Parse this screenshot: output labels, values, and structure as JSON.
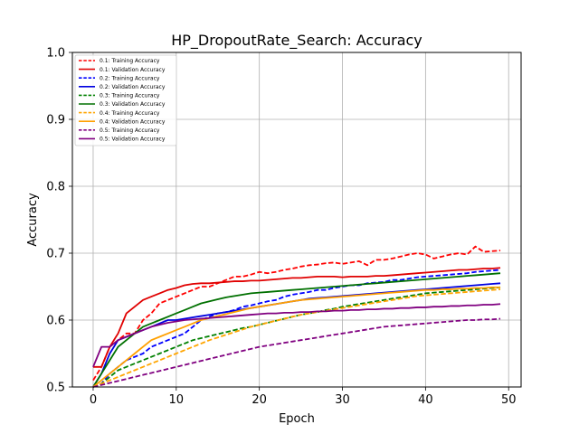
{
  "chart_data": {
    "type": "line",
    "title": "HP_DropoutRate_Search: Accuracy",
    "xlabel": "Epoch",
    "ylabel": "Accuracy",
    "xlim": [
      -2.5,
      51.5
    ],
    "ylim": [
      0.5,
      1.0
    ],
    "xticks": [
      0,
      10,
      20,
      30,
      40,
      50
    ],
    "yticks": [
      0.5,
      0.6,
      0.7,
      0.8,
      0.9,
      1.0
    ],
    "xtick_labels": [
      "0",
      "10",
      "20",
      "30",
      "40",
      "50"
    ],
    "ytick_labels": [
      "0.5",
      "0.6",
      "0.7",
      "0.8",
      "0.9",
      "1.0"
    ],
    "grid": true,
    "legend_position": "upper-left",
    "series": [
      {
        "name": "0.1: Training Accuracy",
        "color": "#ff0000",
        "dash": "dashed",
        "values": [
          0.51,
          0.53,
          0.56,
          0.57,
          0.58,
          0.58,
          0.6,
          0.61,
          0.625,
          0.63,
          0.635,
          0.64,
          0.645,
          0.65,
          0.65,
          0.655,
          0.66,
          0.665,
          0.665,
          0.668,
          0.672,
          0.67,
          0.672,
          0.675,
          0.677,
          0.68,
          0.682,
          0.683,
          0.685,
          0.686,
          0.684,
          0.686,
          0.688,
          0.682,
          0.69,
          0.69,
          0.692,
          0.695,
          0.698,
          0.7,
          0.698,
          0.692,
          0.695,
          0.698,
          0.7,
          0.698,
          0.71,
          0.702,
          0.703,
          0.704
        ]
      },
      {
        "name": "0.1: Validation Accuracy",
        "color": "#e00000",
        "dash": "solid",
        "values": [
          0.53,
          0.53,
          0.56,
          0.58,
          0.61,
          0.62,
          0.63,
          0.635,
          0.64,
          0.645,
          0.648,
          0.652,
          0.654,
          0.655,
          0.655,
          0.656,
          0.657,
          0.658,
          0.658,
          0.659,
          0.659,
          0.66,
          0.661,
          0.662,
          0.663,
          0.663,
          0.664,
          0.665,
          0.665,
          0.665,
          0.664,
          0.665,
          0.665,
          0.665,
          0.666,
          0.666,
          0.667,
          0.668,
          0.669,
          0.67,
          0.671,
          0.672,
          0.673,
          0.674,
          0.675,
          0.675,
          0.676,
          0.677,
          0.677,
          0.678
        ]
      },
      {
        "name": "0.2: Training Accuracy",
        "color": "#0000ff",
        "dash": "dashed",
        "values": [
          0.5,
          0.505,
          0.52,
          0.53,
          0.54,
          0.545,
          0.55,
          0.56,
          0.565,
          0.57,
          0.575,
          0.58,
          0.59,
          0.6,
          0.605,
          0.61,
          0.612,
          0.615,
          0.62,
          0.622,
          0.625,
          0.628,
          0.63,
          0.635,
          0.638,
          0.64,
          0.642,
          0.645,
          0.645,
          0.648,
          0.65,
          0.652,
          0.652,
          0.655,
          0.656,
          0.657,
          0.66,
          0.66,
          0.662,
          0.664,
          0.665,
          0.666,
          0.667,
          0.668,
          0.669,
          0.67,
          0.672,
          0.673,
          0.674,
          0.675
        ]
      },
      {
        "name": "0.2: Validation Accuracy",
        "color": "#0000e0",
        "dash": "solid",
        "values": [
          0.5,
          0.52,
          0.55,
          0.57,
          0.575,
          0.58,
          0.585,
          0.59,
          0.595,
          0.6,
          0.6,
          0.602,
          0.604,
          0.606,
          0.608,
          0.61,
          0.612,
          0.614,
          0.616,
          0.618,
          0.62,
          0.622,
          0.624,
          0.626,
          0.628,
          0.63,
          0.632,
          0.633,
          0.634,
          0.635,
          0.636,
          0.637,
          0.638,
          0.639,
          0.64,
          0.641,
          0.642,
          0.643,
          0.644,
          0.645,
          0.646,
          0.647,
          0.648,
          0.649,
          0.65,
          0.651,
          0.652,
          0.653,
          0.654,
          0.655
        ]
      },
      {
        "name": "0.3: Training Accuracy",
        "color": "#008000",
        "dash": "dashed",
        "values": [
          0.5,
          0.505,
          0.515,
          0.525,
          0.53,
          0.535,
          0.54,
          0.545,
          0.55,
          0.555,
          0.56,
          0.565,
          0.57,
          0.573,
          0.576,
          0.579,
          0.582,
          0.585,
          0.588,
          0.59,
          0.593,
          0.596,
          0.599,
          0.602,
          0.605,
          0.608,
          0.61,
          0.612,
          0.615,
          0.617,
          0.62,
          0.622,
          0.624,
          0.626,
          0.628,
          0.63,
          0.632,
          0.634,
          0.636,
          0.638,
          0.64,
          0.641,
          0.642,
          0.643,
          0.644,
          0.645,
          0.646,
          0.647,
          0.648,
          0.649
        ]
      },
      {
        "name": "0.3: Validation Accuracy",
        "color": "#007000",
        "dash": "solid",
        "values": [
          0.5,
          0.52,
          0.54,
          0.56,
          0.57,
          0.58,
          0.59,
          0.595,
          0.6,
          0.605,
          0.61,
          0.615,
          0.62,
          0.625,
          0.628,
          0.631,
          0.634,
          0.636,
          0.638,
          0.64,
          0.641,
          0.642,
          0.643,
          0.644,
          0.645,
          0.646,
          0.647,
          0.648,
          0.649,
          0.65,
          0.651,
          0.652,
          0.653,
          0.654,
          0.655,
          0.656,
          0.657,
          0.658,
          0.659,
          0.66,
          0.661,
          0.662,
          0.663,
          0.664,
          0.665,
          0.666,
          0.667,
          0.668,
          0.669,
          0.67
        ]
      },
      {
        "name": "0.4: Training Accuracy",
        "color": "#ffa500",
        "dash": "dashed",
        "values": [
          0.5,
          0.505,
          0.51,
          0.515,
          0.52,
          0.525,
          0.53,
          0.535,
          0.54,
          0.545,
          0.55,
          0.555,
          0.56,
          0.565,
          0.57,
          0.574,
          0.578,
          0.582,
          0.586,
          0.59,
          0.593,
          0.596,
          0.599,
          0.602,
          0.605,
          0.608,
          0.61,
          0.612,
          0.614,
          0.616,
          0.618,
          0.62,
          0.622,
          0.624,
          0.626,
          0.628,
          0.63,
          0.632,
          0.634,
          0.636,
          0.637,
          0.638,
          0.639,
          0.64,
          0.641,
          0.642,
          0.643,
          0.644,
          0.645,
          0.646
        ]
      },
      {
        "name": "0.4: Validation Accuracy",
        "color": "#ffa000",
        "dash": "solid",
        "values": [
          0.5,
          0.51,
          0.52,
          0.53,
          0.54,
          0.55,
          0.56,
          0.57,
          0.575,
          0.58,
          0.585,
          0.59,
          0.595,
          0.6,
          0.603,
          0.606,
          0.609,
          0.612,
          0.615,
          0.618,
          0.62,
          0.622,
          0.624,
          0.626,
          0.628,
          0.63,
          0.631,
          0.632,
          0.633,
          0.634,
          0.635,
          0.636,
          0.637,
          0.638,
          0.639,
          0.64,
          0.641,
          0.642,
          0.643,
          0.644,
          0.645,
          0.645,
          0.646,
          0.646,
          0.647,
          0.647,
          0.648,
          0.648,
          0.649,
          0.649
        ]
      },
      {
        "name": "0.5: Training Accuracy",
        "color": "#800080",
        "dash": "dashed",
        "values": [
          0.5,
          0.503,
          0.506,
          0.509,
          0.512,
          0.515,
          0.518,
          0.521,
          0.524,
          0.527,
          0.53,
          0.533,
          0.536,
          0.539,
          0.542,
          0.545,
          0.548,
          0.551,
          0.554,
          0.557,
          0.56,
          0.562,
          0.564,
          0.566,
          0.568,
          0.57,
          0.572,
          0.574,
          0.576,
          0.578,
          0.58,
          0.582,
          0.584,
          0.586,
          0.588,
          0.59,
          0.591,
          0.592,
          0.593,
          0.594,
          0.595,
          0.596,
          0.597,
          0.598,
          0.599,
          0.6,
          0.6,
          0.601,
          0.601,
          0.602
        ]
      },
      {
        "name": "0.5: Validation Accuracy",
        "color": "#800080",
        "dash": "solid",
        "values": [
          0.53,
          0.56,
          0.56,
          0.57,
          0.575,
          0.58,
          0.585,
          0.59,
          0.593,
          0.596,
          0.598,
          0.6,
          0.601,
          0.602,
          0.603,
          0.604,
          0.605,
          0.606,
          0.607,
          0.608,
          0.609,
          0.61,
          0.61,
          0.611,
          0.611,
          0.612,
          0.612,
          0.613,
          0.613,
          0.614,
          0.614,
          0.615,
          0.615,
          0.616,
          0.616,
          0.617,
          0.617,
          0.618,
          0.618,
          0.619,
          0.619,
          0.62,
          0.62,
          0.621,
          0.621,
          0.622,
          0.622,
          0.623,
          0.623,
          0.624
        ]
      }
    ]
  }
}
